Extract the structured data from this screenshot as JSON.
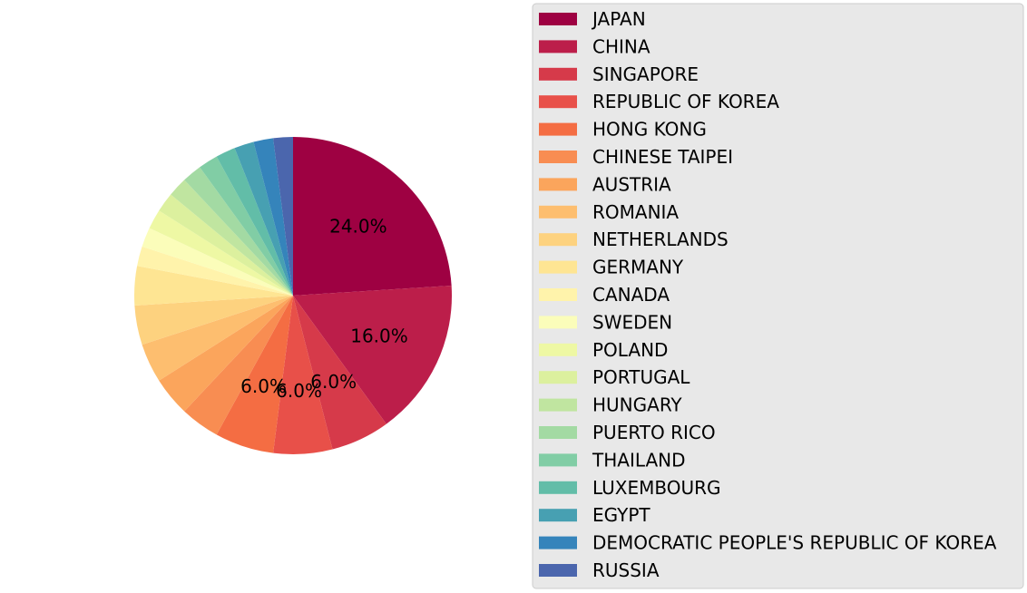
{
  "chart_data": {
    "type": "pie",
    "start_angle_deg": 90,
    "direction": "clockwise",
    "legend_placement": "right",
    "labels_shown_threshold_pct": 5,
    "slices": [
      {
        "label": "JAPAN",
        "value": 24.0,
        "color": "#9e0142"
      },
      {
        "label": "CHINA",
        "value": 16.0,
        "color": "#bc1e4a"
      },
      {
        "label": "SINGAPORE",
        "value": 6.0,
        "color": "#d63a4a"
      },
      {
        "label": "REPUBLIC OF KOREA",
        "value": 6.0,
        "color": "#e85049"
      },
      {
        "label": "HONG KONG",
        "value": 6.0,
        "color": "#f46d43"
      },
      {
        "label": "CHINESE TAIPEI",
        "value": 4.0,
        "color": "#f88d52"
      },
      {
        "label": "AUSTRIA",
        "value": 4.0,
        "color": "#fba55c"
      },
      {
        "label": "ROMANIA",
        "value": 4.0,
        "color": "#fdbe6f"
      },
      {
        "label": "NETHERLANDS",
        "value": 4.0,
        "color": "#fdd27f"
      },
      {
        "label": "GERMANY",
        "value": 4.0,
        "color": "#fee593"
      },
      {
        "label": "CANADA",
        "value": 2.0,
        "color": "#fff3ab"
      },
      {
        "label": "SWEDEN",
        "value": 2.0,
        "color": "#fbfdba"
      },
      {
        "label": "POLAND",
        "value": 2.0,
        "color": "#eef8a4"
      },
      {
        "label": "PORTUGAL",
        "value": 2.0,
        "color": "#dcf09e"
      },
      {
        "label": "HUNGARY",
        "value": 2.0,
        "color": "#c0e5a0"
      },
      {
        "label": "PUERTO RICO",
        "value": 2.0,
        "color": "#a3daa3"
      },
      {
        "label": "THAILAND",
        "value": 2.0,
        "color": "#81cda5"
      },
      {
        "label": "LUXEMBOURG",
        "value": 2.0,
        "color": "#62bda8"
      },
      {
        "label": "EGYPT",
        "value": 2.0,
        "color": "#47a0b2"
      },
      {
        "label": "DEMOCRATIC PEOPLE'S REPUBLIC OF KOREA",
        "value": 2.0,
        "color": "#3584bb"
      },
      {
        "label": "RUSSIA",
        "value": 2.0,
        "color": "#4b66ad"
      }
    ]
  },
  "legend": {
    "background": "#e8e8e8",
    "border": "#cccccc"
  }
}
